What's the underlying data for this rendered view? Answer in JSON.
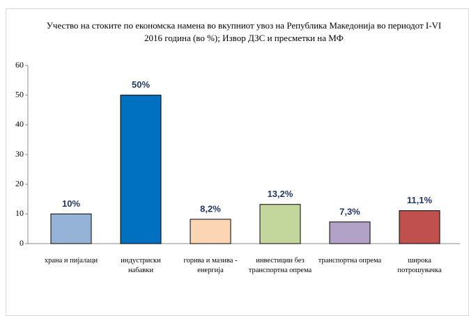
{
  "chart_data": {
    "type": "bar",
    "title": "Учество на стоките по економска намена во вкупниот увоз на Република Македонија во периодот I-VI 2016 година (во %); Извор ДЗС и пресметки на МФ",
    "categories": [
      "храна и пијалаци",
      "индустриски набавки",
      "горива и мазива - енергија",
      "инвестиции без транспортна опрема",
      "транспортна опрема",
      "широка потрошувачка"
    ],
    "values": [
      10,
      50,
      8.2,
      13.2,
      7.3,
      11.1
    ],
    "value_labels": [
      "10%",
      "50%",
      "8,2%",
      "13,2%",
      "7,3%",
      "11,1%"
    ],
    "colors": [
      "#95b3d7",
      "#0070c0",
      "#fcd5b5",
      "#c3d69b",
      "#b3a2c7",
      "#c0504d"
    ],
    "ylim": [
      0,
      60
    ],
    "yticks": [
      0,
      10,
      20,
      30,
      40,
      50,
      60
    ],
    "grid": false
  }
}
